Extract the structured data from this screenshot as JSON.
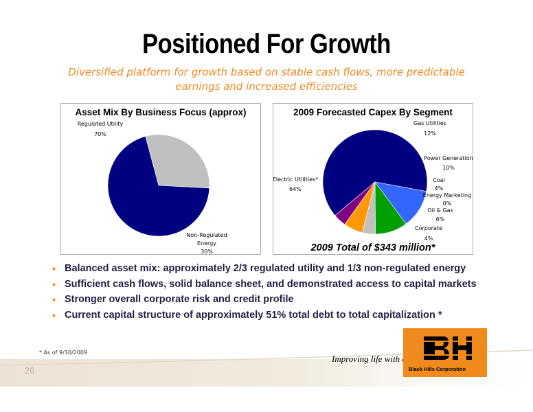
{
  "slide": {
    "title": "Positioned For Growth",
    "subtitle_line1": "Diversified platform for growth based on stable cash flows, more predictable",
    "subtitle_line2": "earnings and increased efficiencies",
    "bullets": [
      "Balanced asset mix: approximately 2/3 regulated utility and 1/3 non-regulated energy",
      "Sufficient cash flows, solid balance sheet, and demonstrated access to capital markets",
      "Stronger overall corporate risk and credit profile",
      "Current capital structure of approximately 51% total debt to total capitalization *"
    ],
    "bullet_glyph": "•",
    "footnote": "* As of 9/30/2009",
    "page_number": "26",
    "tagline": "Improving life with energy",
    "company": "Black Hills Corporation",
    "brand_color": "#f08a1d"
  },
  "chart_data": [
    {
      "type": "pie",
      "title": "Asset Mix By Business Focus (approx)",
      "slices": [
        {
          "label": "Regulated Utility",
          "value": 70,
          "value_label": "70%",
          "color": "#000080"
        },
        {
          "label": "Non-Regulated Energy",
          "value": 30,
          "value_label": "30%",
          "color": "#c0c0c0"
        }
      ]
    },
    {
      "type": "pie",
      "title": "2009 Forecasted Capex By Segment",
      "total_note": "2009 Total of $343 million*",
      "slices": [
        {
          "label": "Electric Utilities*",
          "value": 64,
          "value_label": "64%",
          "color": "#000080"
        },
        {
          "label": "Gas Utilities",
          "value": 12,
          "value_label": "12%",
          "color": "#3366ff"
        },
        {
          "label": "Power Generation",
          "value": 10,
          "value_label": "10%",
          "color": "#00a000"
        },
        {
          "label": "Coal",
          "value": 4,
          "value_label": "4%",
          "color": "#c0c0c0"
        },
        {
          "label": "Energy Marketing",
          "value": 0,
          "value_label": "0%",
          "color": "#ffffff"
        },
        {
          "label": "Oil & Gas",
          "value": 6,
          "value_label": "6%",
          "color": "#ff9900"
        },
        {
          "label": "Corporate",
          "value": 4,
          "value_label": "4%",
          "color": "#800080"
        }
      ]
    }
  ]
}
